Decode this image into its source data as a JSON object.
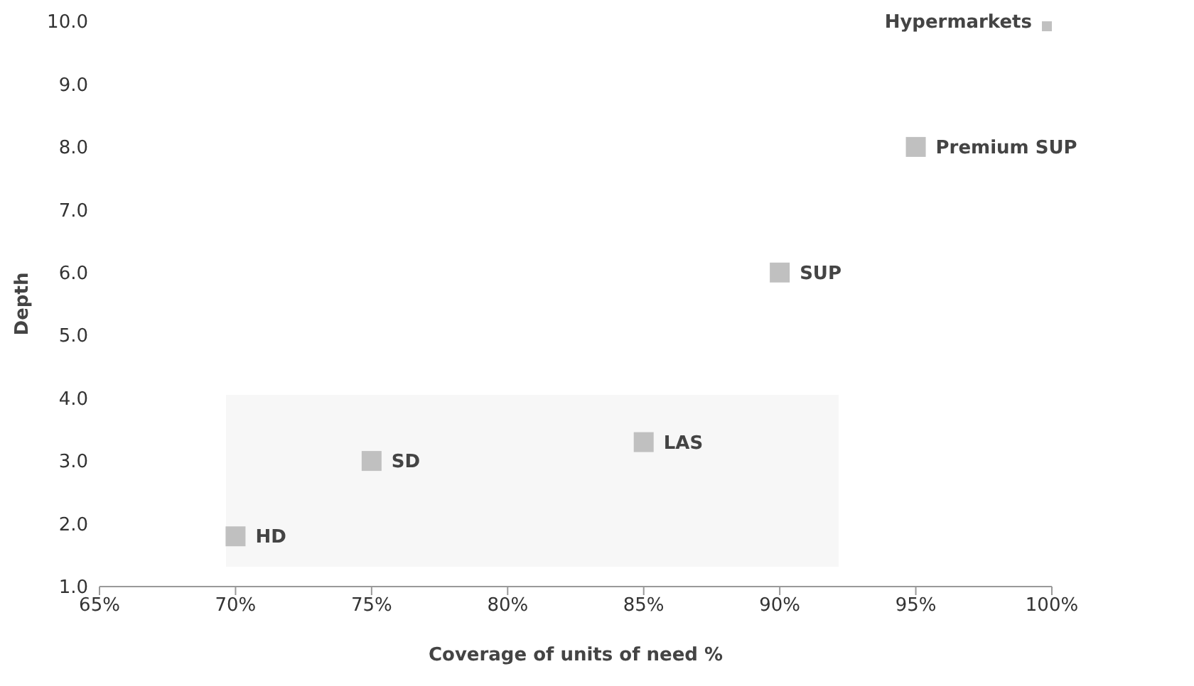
{
  "chart_data": {
    "type": "scatter",
    "xlabel": "Coverage of units of need %",
    "ylabel": "Depth",
    "x": [
      70,
      75,
      85,
      90,
      95,
      100
    ],
    "series": [
      {
        "color": "#c0c0c0",
        "values": [
          1.8,
          3.0,
          3.3,
          6.0,
          8.0,
          10.0
        ]
      }
    ],
    "annotations": [
      {
        "text": "HD",
        "x": 70,
        "y": 1.8
      },
      {
        "text": "SD",
        "x": 75,
        "y": 3.0
      },
      {
        "text": "LAS",
        "x": 85,
        "y": 3.3
      },
      {
        "text": "SUP",
        "x": 90,
        "y": 6.0
      },
      {
        "text": "Premium SUP",
        "x": 95,
        "y": 8.0
      },
      {
        "text": "Hypermarkets",
        "x": 100,
        "y": 10.0
      }
    ],
    "xlim": [
      65,
      100
    ],
    "xticks": [
      {
        "value": 65,
        "label": "65%"
      },
      {
        "value": 70,
        "label": "70%"
      },
      {
        "value": 75,
        "label": "75%"
      },
      {
        "value": 80,
        "label": "80%"
      },
      {
        "value": 85,
        "label": "85%"
      },
      {
        "value": 90,
        "label": "90%"
      },
      {
        "value": 95,
        "label": "95%"
      },
      {
        "value": 100,
        "label": "100%"
      }
    ],
    "ylim": [
      1.0,
      10.0
    ],
    "yticks": [
      {
        "value": 1,
        "label": "1.0"
      },
      {
        "value": 2,
        "label": "2.0"
      },
      {
        "value": 3,
        "label": "3.0"
      },
      {
        "value": 4,
        "label": "4.0"
      },
      {
        "value": 5,
        "label": "5.0"
      },
      {
        "value": 6,
        "label": "6.0"
      },
      {
        "value": 7,
        "label": "7.0"
      },
      {
        "value": 8,
        "label": "8.0"
      },
      {
        "value": 9,
        "label": "9.0"
      },
      {
        "value": 10,
        "label": "10.0"
      }
    ],
    "grid": false,
    "marker": "square",
    "legend": false
  }
}
